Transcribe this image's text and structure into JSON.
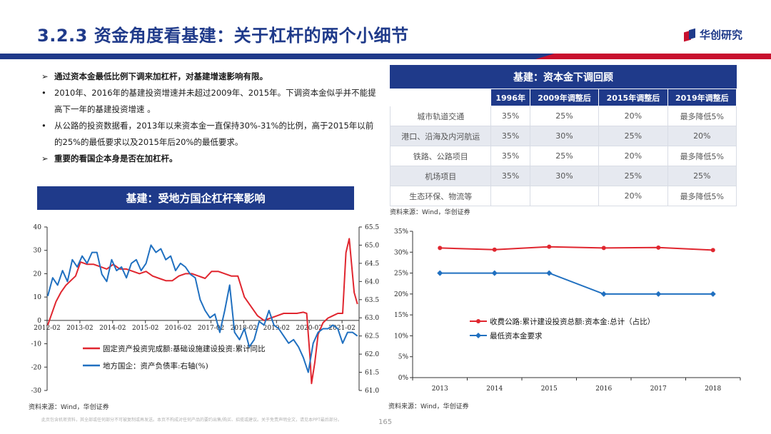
{
  "header": {
    "title": "3.2.3 资金角度看基建：关于杠杆的两个小细节",
    "logo_text": "华创研究"
  },
  "bullets": [
    {
      "marker": "➢",
      "text": "通过资本金最低比例下调来加杠杆，对基建增速影响有限。",
      "bold": true
    },
    {
      "marker": "•",
      "text": "2010年、2016年的基建投资增速并未超过2009年、2015年。下调资本金似乎并不能提高下一年的基建投资增速 。",
      "bold": false
    },
    {
      "marker": "•",
      "text": "从公路的投资数据看，2013年以来资本金一直保持30%-31%的比例，高于2015年以前的25%的最低要求以及2015年后20%的最低要求。",
      "bold": false
    },
    {
      "marker": "➢",
      "text": "重要的看国企本身是否在加杠杆。",
      "bold": true
    }
  ],
  "table": {
    "title": "基建：资本金下调回顾",
    "columns": [
      "",
      "1996年",
      "2009年调整后",
      "2015年调整后",
      "2019年调整后"
    ],
    "rows": [
      [
        "城市轨道交通",
        "35%",
        "25%",
        "20%",
        "最多降低5%"
      ],
      [
        "港口、沿海及内河航运",
        "35%",
        "30%",
        "25%",
        "20%"
      ],
      [
        "铁路、公路项目",
        "35%",
        "25%",
        "20%",
        "最多降低5%"
      ],
      [
        "机场项目",
        "35%",
        "30%",
        "25%",
        "25%"
      ],
      [
        "生态环保、物流等",
        "",
        "",
        "20%",
        "最多降低5%"
      ]
    ],
    "source": "资料来源：Wind，华创证券"
  },
  "left_chart_title": "基建：受地方国企杠杆率影响",
  "left_source": "资料来源：Wind，华创证券",
  "right_source": "资料来源：Wind，华创证券",
  "footer_note": "此页包含机密资料，其全部或任何部分不可被复制或再发送。本页不构成对任何产品的要约出售/购买、招揽或建议。关于免责声明全文，请见本PPT最后部分。",
  "page_number": "165",
  "colors": {
    "navy": "#1f3a8a",
    "red": "#c8102e",
    "red_line": "#e0262f",
    "blue_line": "#2070c0"
  },
  "chart_data": [
    {
      "type": "line",
      "title": "基建：受地方国企杠杆率影响",
      "x_ticks": [
        "2012-02",
        "2013-02",
        "2014-02",
        "2015-02",
        "2016-02",
        "2017-02",
        "2018-02",
        "2019-02",
        "2020-02",
        "2021-02"
      ],
      "x_range": [
        2012.08,
        2021.6
      ],
      "ylim_left": [
        -30,
        40
      ],
      "y_ticks_left": [
        40,
        30,
        20,
        10,
        0,
        -10,
        -20,
        -30
      ],
      "ylim_right": [
        61.0,
        65.5
      ],
      "y_ticks_right": [
        "65.5",
        "65.0",
        "64.5",
        "64.0",
        "63.5",
        "63.0",
        "62.5",
        "62.0",
        "61.5",
        "61.0"
      ],
      "series": [
        {
          "name": "固定资产投资完成额:基础设施建设投资:累计同比",
          "axis": "left",
          "color": "#e0262f",
          "x": [
            2012.1,
            2012.2,
            2012.35,
            2012.5,
            2012.65,
            2012.8,
            2012.95,
            2013.1,
            2013.3,
            2013.5,
            2013.7,
            2013.9,
            2014.1,
            2014.3,
            2014.5,
            2014.7,
            2014.9,
            2015.1,
            2015.3,
            2015.5,
            2015.7,
            2015.9,
            2016.1,
            2016.3,
            2016.5,
            2016.7,
            2016.9,
            2017.1,
            2017.3,
            2017.5,
            2017.7,
            2017.9,
            2018.1,
            2018.3,
            2018.5,
            2018.7,
            2018.9,
            2019.1,
            2019.3,
            2019.5,
            2019.7,
            2019.9,
            2020.0,
            2020.1,
            2020.15,
            2020.25,
            2020.35,
            2020.5,
            2020.65,
            2020.8,
            2020.95,
            2021.1,
            2021.2,
            2021.3,
            2021.45,
            2021.55
          ],
          "y": [
            -2,
            2,
            8,
            12,
            15,
            17,
            19,
            25,
            24,
            24,
            23,
            22,
            24,
            22,
            22,
            21,
            20,
            21,
            19,
            18,
            17,
            17,
            19,
            20,
            20,
            19,
            18,
            21,
            21,
            20,
            19,
            19,
            10,
            6,
            2,
            0,
            1,
            2,
            3,
            3,
            3,
            3.5,
            3,
            -15,
            -27,
            -18,
            -6,
            -1,
            1,
            2,
            3,
            3,
            29,
            35,
            12,
            7
          ]
        },
        {
          "name": "地方国企：资产负债率:右轴(%)",
          "axis": "right",
          "color": "#2070c0",
          "x": [
            2012.1,
            2012.25,
            2012.4,
            2012.55,
            2012.7,
            2012.85,
            2013.0,
            2013.15,
            2013.3,
            2013.45,
            2013.6,
            2013.75,
            2013.9,
            2014.05,
            2014.2,
            2014.35,
            2014.5,
            2014.65,
            2014.8,
            2014.95,
            2015.1,
            2015.25,
            2015.4,
            2015.55,
            2015.7,
            2015.85,
            2016.0,
            2016.15,
            2016.3,
            2016.45,
            2016.6,
            2016.75,
            2016.9,
            2017.05,
            2017.2,
            2017.35,
            2017.5,
            2017.65,
            2017.8,
            2017.95,
            2018.1,
            2018.25,
            2018.4,
            2018.55,
            2018.7,
            2018.85,
            2019.0,
            2019.15,
            2019.3,
            2019.45,
            2019.6,
            2019.75,
            2019.9,
            2020.05,
            2020.2,
            2020.35,
            2020.5,
            2020.65,
            2020.8,
            2020.95,
            2021.1,
            2021.25,
            2021.4,
            2021.55
          ],
          "y": [
            63.6,
            64.1,
            63.9,
            64.3,
            64.0,
            64.6,
            64.4,
            64.7,
            64.5,
            64.8,
            64.8,
            64.2,
            64.0,
            64.6,
            64.3,
            64.4,
            64.1,
            64.5,
            64.6,
            64.3,
            64.5,
            65.0,
            64.8,
            64.9,
            64.6,
            64.7,
            64.3,
            64.5,
            64.4,
            64.2,
            64.1,
            63.5,
            63.2,
            63.0,
            63.1,
            62.6,
            63.2,
            63.9,
            62.6,
            62.4,
            62.7,
            62.2,
            62.4,
            62.9,
            62.8,
            63.2,
            62.8,
            62.7,
            62.5,
            62.3,
            62.4,
            62.2,
            61.9,
            61.5,
            62.3,
            62.6,
            62.7,
            62.7,
            62.8,
            62.7,
            62.3,
            62.6,
            62.6,
            62.5
          ]
        }
      ]
    },
    {
      "type": "line",
      "title": "",
      "categories": [
        "2013",
        "2014",
        "2015",
        "2016",
        "2017",
        "2018"
      ],
      "ylim": [
        0,
        35
      ],
      "y_ticks": [
        "35%",
        "30%",
        "25%",
        "20%",
        "15%",
        "10%",
        "5%",
        "0%"
      ],
      "series": [
        {
          "name": "收费公路:累计建设投资总额:资本金:总计（占比）",
          "color": "#e0262f",
          "values": [
            31,
            30.6,
            31.3,
            31,
            31.1,
            30.5
          ]
        },
        {
          "name": "最低资本金要求",
          "color": "#2070c0",
          "values": [
            25,
            25,
            25,
            20,
            20,
            20
          ]
        }
      ]
    }
  ]
}
